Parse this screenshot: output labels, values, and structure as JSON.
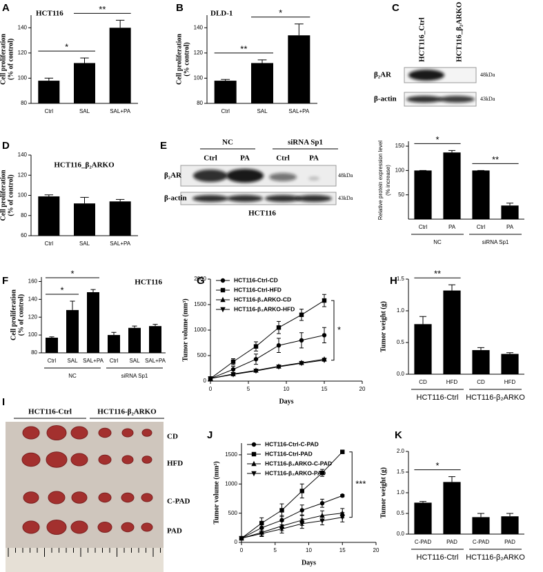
{
  "chart_data": [
    {
      "panel": "A",
      "type": "bar",
      "title": "HCT116",
      "ylabel": [
        "Cell proliferation",
        "(% of control)"
      ],
      "categories": [
        "Ctrl",
        "SAL",
        "SAL+PA"
      ],
      "values": [
        98,
        112,
        140
      ],
      "errors": [
        2,
        4,
        6
      ],
      "color": "#000000",
      "ylim": [
        80,
        150
      ],
      "yticks": [
        80,
        100,
        120,
        140
      ],
      "annotations": [
        {
          "text": "*",
          "between": [
            0,
            1
          ]
        },
        {
          "text": "**",
          "between": [
            1,
            2
          ]
        }
      ]
    },
    {
      "panel": "B",
      "type": "bar",
      "title": "DLD-1",
      "ylabel": [
        "Cell proliferation",
        "(% control)"
      ],
      "categories": [
        "Ctrl",
        "SAL",
        "SAL+PA"
      ],
      "values": [
        98,
        112,
        134
      ],
      "errors": [
        1,
        2.5,
        9
      ],
      "color": "#000000",
      "ylim": [
        80,
        150
      ],
      "yticks": [
        80,
        100,
        120,
        140
      ],
      "annotations": [
        {
          "text": "**",
          "between": [
            0,
            1
          ]
        },
        {
          "text": "*",
          "between": [
            1,
            2
          ]
        }
      ]
    },
    {
      "panel": "D",
      "type": "bar",
      "title": "HCT116_β₂ARKO",
      "ylabel": [
        "Cell proliferation",
        "(% of control)"
      ],
      "categories": [
        "Ctrl",
        "SAL",
        "SAL+PA"
      ],
      "values": [
        99,
        92,
        94
      ],
      "errors": [
        1.5,
        6,
        2
      ],
      "color": "#000000",
      "ylim": [
        60,
        140
      ],
      "yticks": [
        60,
        80,
        100,
        120,
        140
      ],
      "annotations": []
    },
    {
      "type": "bar",
      "ylabel": [
        "Relative protein expression level",
        "(% increase)"
      ],
      "categories": [
        "Ctrl",
        "PA",
        "Ctrl",
        "PA"
      ],
      "groups": [
        "NC",
        "siRNA Sp1"
      ],
      "values": [
        100,
        137,
        100,
        28
      ],
      "errors": [
        0,
        4,
        0,
        5
      ],
      "color": "#000000",
      "ylim": [
        0,
        160
      ],
      "yticks": [
        50,
        100,
        150
      ],
      "annotations": [
        {
          "text": "*",
          "between": [
            0,
            1
          ]
        },
        {
          "text": "**",
          "between": [
            2,
            3
          ]
        }
      ]
    },
    {
      "panel": "F",
      "type": "bar",
      "title": "HCT116",
      "ylabel": [
        "Cell proliferation",
        "(% of control)"
      ],
      "categories": [
        "Ctrl",
        "SAL",
        "SAL+PA",
        "Ctrl",
        "SAL",
        "SAL+PA"
      ],
      "groups": [
        "NC",
        "siRNA Sp1"
      ],
      "values": [
        97,
        128,
        148,
        100,
        108,
        110
      ],
      "errors": [
        1,
        10,
        3,
        3,
        2,
        2
      ],
      "color": "#000000",
      "ylim": [
        80,
        165
      ],
      "yticks": [
        80,
        100,
        120,
        140,
        160
      ],
      "annotations": [
        {
          "text": "*",
          "between": [
            0,
            1
          ]
        },
        {
          "text": "*",
          "between": [
            0,
            2
          ]
        }
      ]
    },
    {
      "panel": "G",
      "type": "line",
      "xlabel": "Days",
      "ylabel": [
        "Tumor volume (mm³)"
      ],
      "x": [
        0,
        3,
        6,
        9,
        12,
        15
      ],
      "xlim": [
        0,
        20
      ],
      "xticks": [
        0,
        5,
        10,
        15,
        20
      ],
      "ylim": [
        0,
        2000
      ],
      "yticks": [
        0,
        500,
        1000,
        1500,
        2000
      ],
      "legend": "upper left",
      "series": [
        {
          "name": "HCT116-Ctrl-CD",
          "marker": "circle",
          "color": "#000000",
          "values": [
            50,
            230,
            430,
            700,
            800,
            900
          ],
          "errors": [
            0,
            60,
            100,
            140,
            150,
            150
          ]
        },
        {
          "name": "HCT116-Ctrl-HFD",
          "marker": "square",
          "color": "#000000",
          "values": [
            50,
            380,
            680,
            1050,
            1300,
            1580
          ],
          "errors": [
            0,
            60,
            90,
            120,
            110,
            120
          ]
        },
        {
          "name": "HCT116-β₂ARKO-CD",
          "marker": "triangle-up",
          "color": "#000000",
          "values": [
            50,
            140,
            210,
            290,
            360,
            430
          ],
          "errors": [
            0,
            20,
            20,
            20,
            20,
            20
          ]
        },
        {
          "name": "HCT116-β₂ARKO-HFD",
          "marker": "triangle-down",
          "color": "#000000",
          "values": [
            50,
            130,
            200,
            280,
            350,
            410
          ],
          "errors": [
            0,
            20,
            20,
            20,
            20,
            20
          ]
        }
      ],
      "annotations": [
        {
          "text": "*",
          "between": [
            1,
            3
          ]
        }
      ]
    },
    {
      "panel": "H",
      "type": "bar",
      "ylabel": [
        "Tumor weight (g)"
      ],
      "categories": [
        "CD",
        "HFD",
        "CD",
        "HFD"
      ],
      "groups": [
        "HCT116-Ctrl",
        "HCT116-β₂ARKO"
      ],
      "values": [
        0.79,
        1.32,
        0.38,
        0.32
      ],
      "errors": [
        0.12,
        0.09,
        0.04,
        0.02
      ],
      "color": "#000000",
      "ylim": [
        0,
        1.5
      ],
      "yticks": [
        {
          "value": 0,
          "label": "0.0"
        },
        0.5,
        {
          "value": 1,
          "label": "1.0"
        },
        1.5
      ],
      "annotations": [
        {
          "text": "**",
          "between": [
            0,
            1
          ]
        }
      ]
    },
    {
      "panel": "J",
      "type": "line",
      "xlabel": "Days",
      "ylabel": [
        "Tumor volume (mm³)"
      ],
      "x": [
        0,
        3,
        6,
        9,
        12,
        15
      ],
      "xlim": [
        0,
        20
      ],
      "xticks": [
        0,
        5,
        10,
        15,
        20
      ],
      "ylim": [
        0,
        1700
      ],
      "yticks": [
        0,
        500,
        1000,
        1500
      ],
      "legend": "upper left",
      "series": [
        {
          "name": "HCT116-Ctrl-C-PAD",
          "marker": "circle",
          "color": "#000000",
          "values": [
            70,
            250,
            380,
            550,
            670,
            800
          ],
          "errors": [
            0,
            90,
            80,
            90,
            70,
            20
          ]
        },
        {
          "name": "HCT116-Ctrl-PAD",
          "marker": "square",
          "color": "#000000",
          "values": [
            70,
            330,
            550,
            880,
            1190,
            1550
          ],
          "errors": [
            0,
            90,
            110,
            120,
            60,
            20
          ]
        },
        {
          "name": "HCT116-β₂ARKO-C-PAD",
          "marker": "triangle-up",
          "color": "#000000",
          "values": [
            70,
            170,
            280,
            380,
            460,
            500
          ],
          "errors": [
            0,
            60,
            80,
            90,
            80,
            80
          ]
        },
        {
          "name": "HCT116-β₂ARKO-PAD",
          "marker": "triangle-down",
          "color": "#000000",
          "values": [
            70,
            150,
            230,
            320,
            370,
            430
          ],
          "errors": [
            0,
            50,
            70,
            80,
            70,
            80
          ]
        }
      ],
      "annotations": [
        {
          "text": "***",
          "between": [
            1,
            3
          ]
        }
      ]
    },
    {
      "panel": "K",
      "type": "bar",
      "ylabel": [
        "Tumor weight (g)"
      ],
      "categories": [
        "C-PAD",
        "PAD",
        "C-PAD",
        "PAD"
      ],
      "groups": [
        "HCT116-Ctrl",
        "HCT116-β₂ARKO"
      ],
      "values": [
        0.76,
        1.26,
        0.41,
        0.43
      ],
      "errors": [
        0.03,
        0.13,
        0.09,
        0.07
      ],
      "color": "#000000",
      "ylim": [
        0,
        2.0
      ],
      "yticks": [
        {
          "value": 0,
          "label": "0.0"
        },
        0.5,
        {
          "value": 1,
          "label": "1.0"
        },
        1.5,
        {
          "value": 2,
          "label": "2.0"
        }
      ],
      "annotations": [
        {
          "text": "*",
          "between": [
            0,
            1
          ]
        }
      ]
    }
  ],
  "blots": [
    {
      "panel": "C",
      "lanes": [
        "HCT116_Ctrl",
        "HCT116_β₂ARKO"
      ],
      "rows": [
        {
          "label": "β₂AR",
          "size": "48kDa"
        },
        {
          "label": "β-actin",
          "size": "43kDa"
        }
      ]
    },
    {
      "panel": "E",
      "groups": [
        "NC",
        "siRNA Sp1"
      ],
      "lanes": [
        "Ctrl",
        "PA",
        "Ctrl",
        "PA"
      ],
      "rows": [
        {
          "label": "β₂AR",
          "size": "48kDa"
        },
        {
          "label": "β-actin",
          "size": "43kDa"
        }
      ],
      "caption": "HCT116"
    }
  ],
  "photo": {
    "panel": "I",
    "groups": [
      "HCT116-Ctrl",
      "HCT116-β₂ARKO"
    ],
    "rows": [
      "CD",
      "HFD",
      "C-PAD",
      "PAD"
    ]
  }
}
